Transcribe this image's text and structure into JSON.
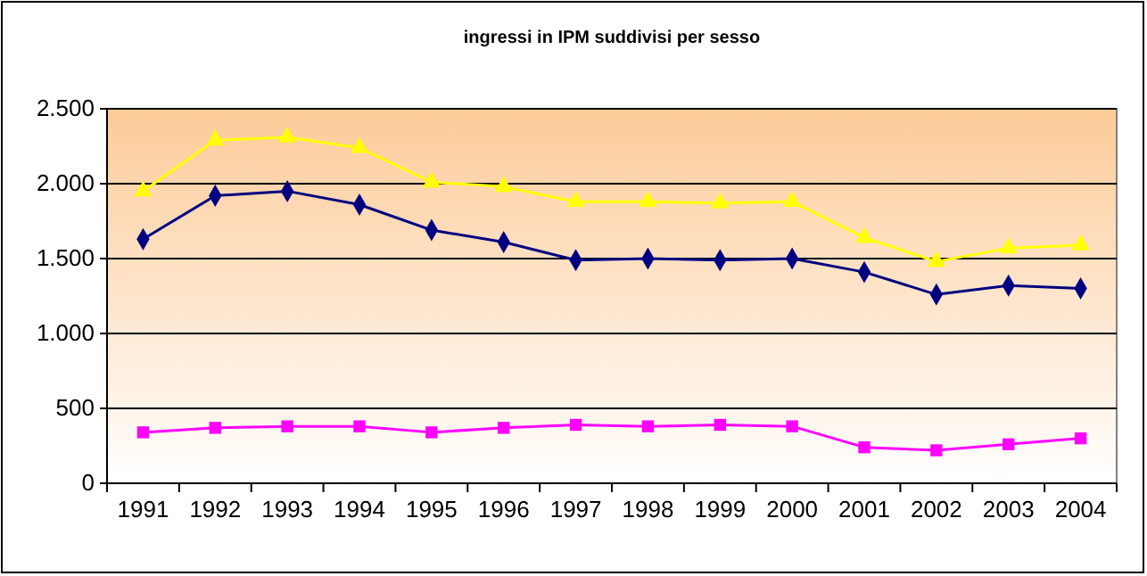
{
  "chart_data": {
    "type": "line",
    "title": "ingressi in IPM suddivisi per sesso",
    "categories": [
      "1991",
      "1992",
      "1993",
      "1994",
      "1995",
      "1996",
      "1997",
      "1998",
      "1999",
      "2000",
      "2001",
      "2002",
      "2003",
      "2004"
    ],
    "series": [
      {
        "color": "#ffff00",
        "marker": "triangle",
        "values": [
          1950,
          2290,
          2310,
          2240,
          2010,
          1980,
          1880,
          1880,
          1870,
          1880,
          1640,
          1480,
          1570,
          1590
        ]
      },
      {
        "color": "#000080",
        "marker": "diamond",
        "values": [
          1630,
          1920,
          1950,
          1860,
          1690,
          1610,
          1490,
          1500,
          1490,
          1500,
          1410,
          1260,
          1320,
          1300
        ]
      },
      {
        "color": "#ff00ff",
        "marker": "square",
        "values": [
          340,
          370,
          380,
          380,
          340,
          370,
          390,
          380,
          390,
          380,
          240,
          220,
          260,
          300
        ]
      }
    ],
    "ylim": [
      0,
      2500
    ],
    "yticks": [
      {
        "value": 0,
        "label": "0"
      },
      {
        "value": 500,
        "label": "500"
      },
      {
        "value": 1000,
        "label": "1.000"
      },
      {
        "value": 1500,
        "label": "1.500"
      },
      {
        "value": 2000,
        "label": "2.000"
      },
      {
        "value": 2500,
        "label": "2.500"
      }
    ],
    "grid": "y"
  }
}
